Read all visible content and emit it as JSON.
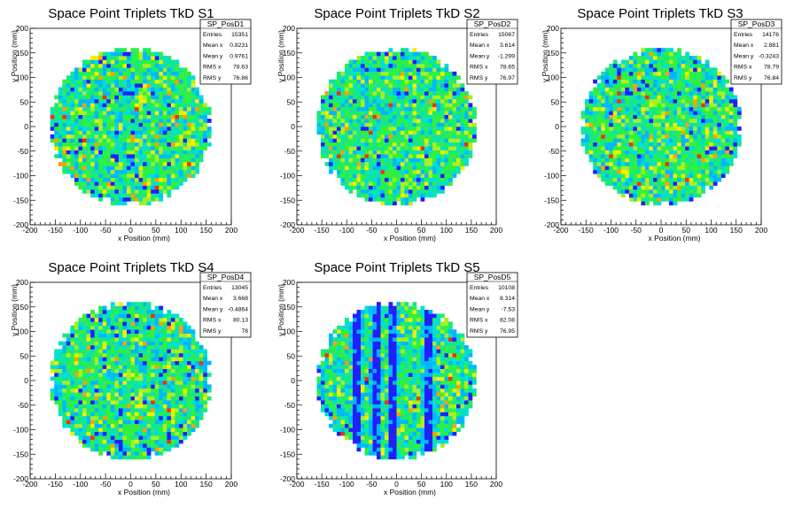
{
  "chart_data": [
    {
      "type": "heatmap",
      "title": "Space Point Triplets TkD S1",
      "xlabel": "x Position (mm)",
      "ylabel": "y Position (mm)",
      "xlim": [
        -200,
        200
      ],
      "ylim": [
        -200,
        200
      ],
      "x_ticks": [
        "-200",
        "-150",
        "-100",
        "-50",
        "0",
        "50",
        "100",
        "150",
        "200"
      ],
      "y_ticks": [
        "200",
        "150",
        "100",
        "50",
        "0",
        "-50",
        "-100",
        "-150",
        "-200"
      ],
      "grid": false,
      "distribution": {
        "shape": "disc",
        "radius_mm": 160
      },
      "stats": {
        "name": "SP_PosD1",
        "rows": [
          {
            "label": "Entries",
            "value": "15351"
          },
          {
            "label": "Mean x",
            "value": "0.8231"
          },
          {
            "label": "Mean y",
            "value": "0.9761"
          },
          {
            "label": "RMS x",
            "value": "78.63"
          },
          {
            "label": "RMS y",
            "value": "76.86"
          }
        ]
      }
    },
    {
      "type": "heatmap",
      "title": "Space Point Triplets TkD S2",
      "xlabel": "x Position (mm)",
      "ylabel": "y Position (mm)",
      "xlim": [
        -200,
        200
      ],
      "ylim": [
        -200,
        200
      ],
      "x_ticks": [
        "-200",
        "-150",
        "-100",
        "-50",
        "0",
        "50",
        "100",
        "150",
        "200"
      ],
      "y_ticks": [
        "200",
        "150",
        "100",
        "50",
        "0",
        "-50",
        "-100",
        "-150",
        "-200"
      ],
      "grid": false,
      "distribution": {
        "shape": "disc",
        "radius_mm": 160
      },
      "stats": {
        "name": "SP_PosD2",
        "rows": [
          {
            "label": "Entries",
            "value": "15067"
          },
          {
            "label": "Mean x",
            "value": "3.614"
          },
          {
            "label": "Mean y",
            "value": "-1.299"
          },
          {
            "label": "RMS x",
            "value": "78.65"
          },
          {
            "label": "RMS y",
            "value": "76.97"
          }
        ]
      }
    },
    {
      "type": "heatmap",
      "title": "Space Point Triplets TkD S3",
      "xlabel": "x Position (mm)",
      "ylabel": "y Position (mm)",
      "xlim": [
        -200,
        200
      ],
      "ylim": [
        -200,
        200
      ],
      "x_ticks": [
        "-200",
        "-150",
        "-100",
        "-50",
        "0",
        "50",
        "100",
        "150",
        "200"
      ],
      "y_ticks": [
        "200",
        "150",
        "100",
        "50",
        "0",
        "-50",
        "-100",
        "-150",
        "-200"
      ],
      "grid": false,
      "distribution": {
        "shape": "disc",
        "radius_mm": 160
      },
      "stats": {
        "name": "SP_PosD3",
        "rows": [
          {
            "label": "Entries",
            "value": "14176"
          },
          {
            "label": "Mean x",
            "value": "2.881"
          },
          {
            "label": "Mean y",
            "value": "-0.3243"
          },
          {
            "label": "RMS x",
            "value": "78.79"
          },
          {
            "label": "RMS y",
            "value": "76.84"
          }
        ]
      }
    },
    {
      "type": "heatmap",
      "title": "Space Point Triplets TkD S4",
      "xlabel": "x Position (mm)",
      "ylabel": "y Position (mm)",
      "xlim": [
        -200,
        200
      ],
      "ylim": [
        -200,
        200
      ],
      "x_ticks": [
        "-200",
        "-150",
        "-100",
        "-50",
        "0",
        "50",
        "100",
        "150",
        "200"
      ],
      "y_ticks": [
        "200",
        "150",
        "100",
        "50",
        "0",
        "-50",
        "-100",
        "-150",
        "-200"
      ],
      "grid": false,
      "distribution": {
        "shape": "disc",
        "radius_mm": 160
      },
      "stats": {
        "name": "SP_PosD4",
        "rows": [
          {
            "label": "Entries",
            "value": "13045"
          },
          {
            "label": "Mean x",
            "value": "3.668"
          },
          {
            "label": "Mean y",
            "value": "-0.4864"
          },
          {
            "label": "RMS x",
            "value": "80.13"
          },
          {
            "label": "RMS y",
            "value": "78"
          }
        ]
      }
    },
    {
      "type": "heatmap",
      "title": "Space Point Triplets TkD S5",
      "xlabel": "x Position (mm)",
      "ylabel": "y Position (mm)",
      "xlim": [
        -200,
        200
      ],
      "ylim": [
        -200,
        200
      ],
      "x_ticks": [
        "-200",
        "-150",
        "-100",
        "-50",
        "0",
        "50",
        "100",
        "150",
        "200"
      ],
      "y_ticks": [
        "200",
        "150",
        "100",
        "50",
        "0",
        "-50",
        "-100",
        "-150",
        "-200"
      ],
      "grid": false,
      "distribution": {
        "shape": "disc",
        "radius_mm": 160,
        "low_density_bands_x_mm": [
          -80,
          -40,
          -5,
          65
        ]
      },
      "stats": {
        "name": "SP_PosD5",
        "rows": [
          {
            "label": "Entries",
            "value": "10108"
          },
          {
            "label": "Mean x",
            "value": "8.314"
          },
          {
            "label": "Mean y",
            "value": "-7.53"
          },
          {
            "label": "RMS x",
            "value": "82.08"
          },
          {
            "label": "RMS y",
            "value": "76.95"
          }
        ]
      }
    }
  ],
  "palette": [
    "#2020ff",
    "#00b8ff",
    "#00e0d0",
    "#18e880",
    "#30f040",
    "#a8f020",
    "#f0f000",
    "#ffa000",
    "#ff3000"
  ]
}
